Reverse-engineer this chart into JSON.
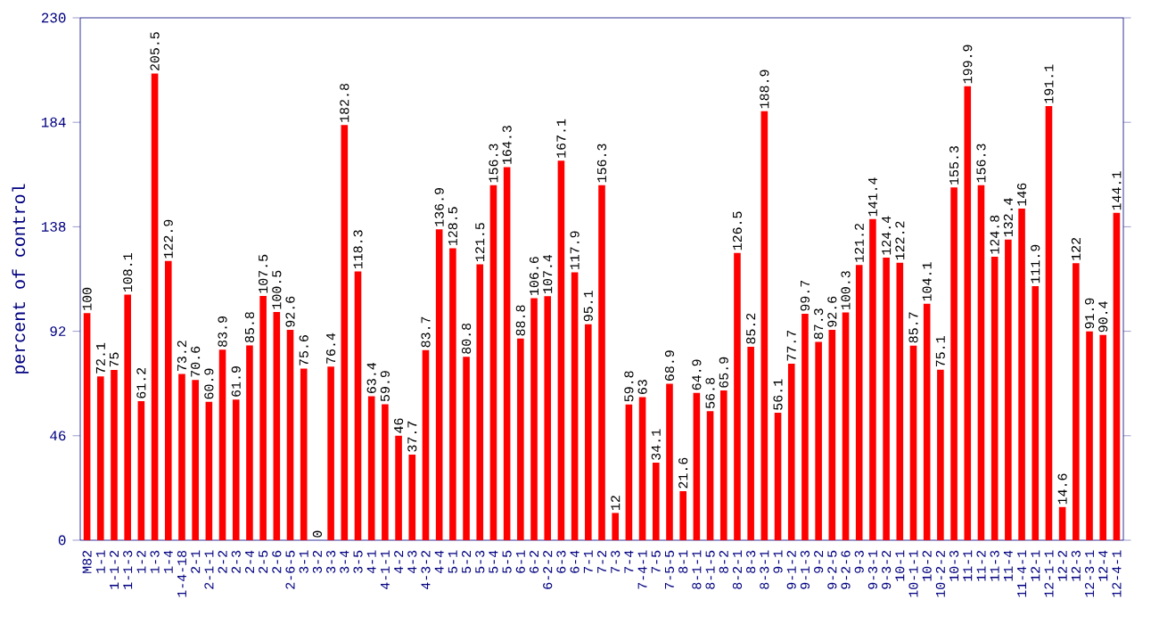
{
  "chart_data": {
    "type": "bar",
    "ylabel": "percent of control",
    "categories": [
      "M82",
      "1-1",
      "1-1-2",
      "1-1-3",
      "1-2",
      "1-3",
      "1-4",
      "1-4-18",
      "2-1",
      "2-1-1",
      "2-2",
      "2-3",
      "2-4",
      "2-5",
      "2-6",
      "2-6-5",
      "3-1",
      "3-2",
      "3-3",
      "3-4",
      "3-5",
      "4-1",
      "4-1-1",
      "4-2",
      "4-3",
      "4-3-2",
      "4-4",
      "5-1",
      "5-2",
      "5-3",
      "5-4",
      "5-5",
      "6-1",
      "6-2",
      "6-2-2",
      "6-3",
      "6-4",
      "7-1",
      "7-2",
      "7-3",
      "7-4",
      "7-4-1",
      "7-5",
      "7-5-5",
      "8-1",
      "8-1-1",
      "8-1-5",
      "8-2",
      "8-2-1",
      "8-3",
      "8-3-1",
      "9-1",
      "9-1-2",
      "9-1-3",
      "9-2",
      "9-2-5",
      "9-2-6",
      "9-3",
      "9-3-1",
      "9-3-2",
      "10-1",
      "10-1-1",
      "10-2",
      "10-2-2",
      "10-3",
      "11-1",
      "11-2",
      "11-3",
      "11-4",
      "11-4-1",
      "12-1",
      "12-1-1",
      "12-2",
      "12-3",
      "12-3-1",
      "12-4",
      "12-4-1"
    ],
    "values": [
      100,
      72.1,
      75,
      108.1,
      61.2,
      205.5,
      122.9,
      73.2,
      70.6,
      60.9,
      83.9,
      61.9,
      85.8,
      107.5,
      100.5,
      92.6,
      75.6,
      0,
      76.4,
      182.8,
      118.3,
      63.4,
      59.9,
      46,
      37.7,
      83.7,
      136.9,
      128.5,
      80.8,
      121.5,
      156.3,
      164.3,
      88.8,
      106.6,
      107.4,
      167.1,
      117.9,
      95.1,
      156.3,
      12,
      59.8,
      63,
      34.1,
      68.9,
      21.6,
      64.9,
      56.8,
      65.9,
      126.5,
      85.2,
      188.9,
      56.1,
      77.7,
      99.7,
      87.3,
      92.6,
      100.3,
      121.2,
      141.4,
      124.4,
      122.2,
      85.7,
      104.1,
      75.1,
      155.3,
      199.9,
      156.3,
      124.8,
      132.4,
      146,
      111.9,
      191.1,
      14.6,
      122,
      91.9,
      90.4,
      144.1
    ],
    "color": "#ff0000",
    "data_labels": true,
    "ylim": [
      0,
      230
    ],
    "yticks": [
      0,
      46,
      92,
      138,
      184,
      230
    ]
  }
}
